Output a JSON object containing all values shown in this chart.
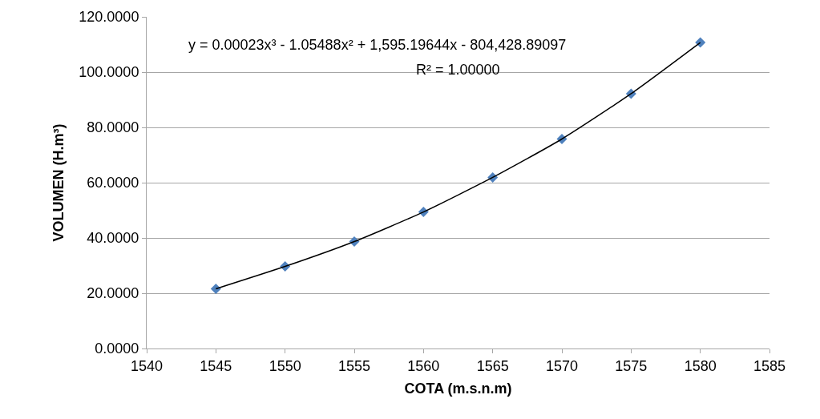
{
  "chart_data": {
    "type": "scatter",
    "xlabel": "COTA (m.s.n.m)",
    "ylabel": "VOLUMEN (H.m³)",
    "x": [
      1545,
      1550,
      1555,
      1560,
      1565,
      1570,
      1575,
      1580
    ],
    "series": [
      {
        "color": "#4f81bd",
        "marker": "diamond",
        "values": [
          21.6,
          29.7,
          38.7,
          49.4,
          61.9,
          75.8,
          92.2,
          110.7
        ]
      },
      {
        "type": "line",
        "color": "#000000",
        "marker": "none",
        "line_style": "solid",
        "values": [
          21.6,
          29.7,
          38.7,
          49.4,
          61.9,
          75.8,
          92.2,
          110.7
        ]
      }
    ],
    "xlim": [
      1540,
      1585
    ],
    "xticks": [
      1540,
      1545,
      1550,
      1555,
      1560,
      1565,
      1570,
      1575,
      1580,
      1585
    ],
    "ylim": [
      0,
      120
    ],
    "yticks": [
      {
        "value": 0,
        "label": "0.0000"
      },
      {
        "value": 20,
        "label": "20.0000"
      },
      {
        "value": 40,
        "label": "40.0000"
      },
      {
        "value": 60,
        "label": "60.0000"
      },
      {
        "value": 80,
        "label": "80.0000"
      },
      {
        "value": 100,
        "label": "100.0000"
      },
      {
        "value": 120,
        "label": "120.0000"
      }
    ],
    "grid": "y",
    "annotations": [
      "y = 0.00023x³ - 1.05488x² + 1,595.19644x - 804,428.89097",
      "R² = 1.00000"
    ]
  }
}
